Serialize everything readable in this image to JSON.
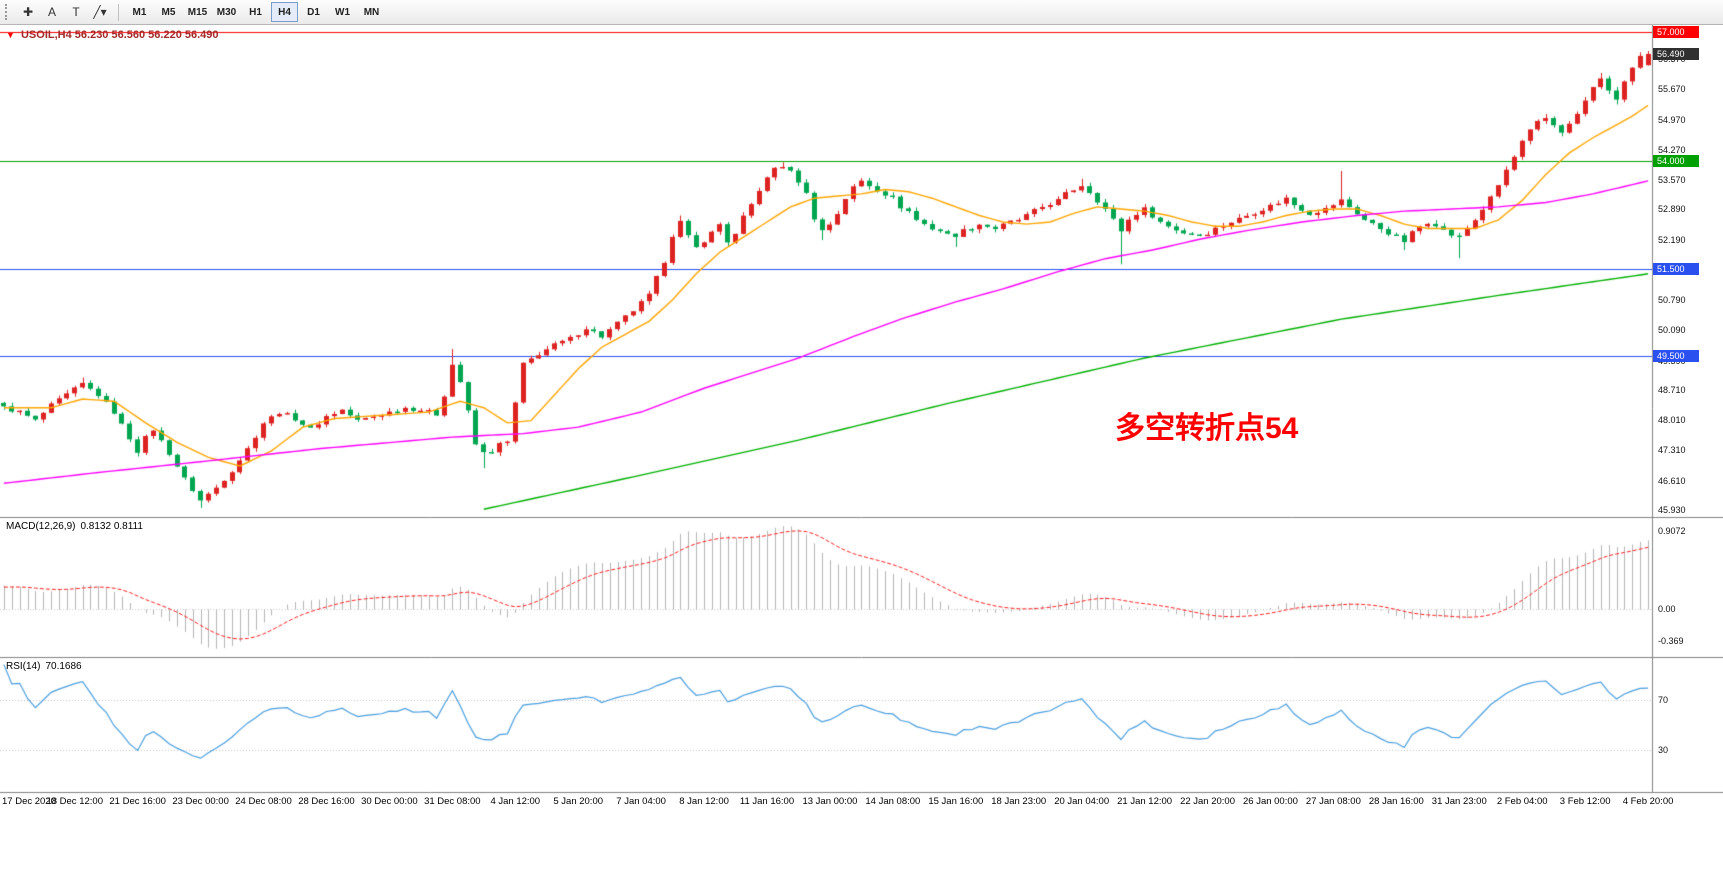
{
  "toolbar": {
    "tools": [
      {
        "name": "crosshair-icon",
        "glyph": "✚"
      },
      {
        "name": "text-label-icon",
        "glyph": "A"
      },
      {
        "name": "text-box-icon",
        "glyph": "T"
      },
      {
        "name": "trendline-icon",
        "glyph": "╱",
        "caret": "▾"
      }
    ],
    "timeframes": [
      "M1",
      "M5",
      "M15",
      "M30",
      "H1",
      "H4",
      "D1",
      "W1",
      "MN"
    ],
    "active_timeframe": "H4"
  },
  "info": {
    "marker": "▼",
    "symbol_period": "USOIL,H4",
    "ohlc": "56.230 56.560 56.220 56.490"
  },
  "annotation": {
    "text": "多空转折点54",
    "color": "#ff0000"
  },
  "indicators": {
    "macd": {
      "label": "MACD(12,26,9)",
      "values": "0.8132 0.8111",
      "scale": [
        {
          "text": "0.9072",
          "v": 0.9072
        },
        {
          "text": "0.00",
          "v": 0
        },
        {
          "text": "-0.369",
          "v": -0.369
        }
      ]
    },
    "rsi": {
      "label": "RSI(14)",
      "values": "70.1686",
      "scale": [
        {
          "text": "70",
          "v": 70
        },
        {
          "text": "30",
          "v": 30
        }
      ]
    }
  },
  "chart_data": {
    "type": "candlestick",
    "symbol": "USOIL",
    "timeframe": "H4",
    "bar_count": 210,
    "current_ohlc": {
      "open": 56.23,
      "high": 56.56,
      "low": 56.22,
      "close": 56.49
    },
    "price_range": [
      45.77,
      57.16
    ],
    "up_color": "#dd2222",
    "down_color": "#00a550",
    "y_ticks": [
      "45.930",
      "46.610",
      "47.310",
      "48.010",
      "48.710",
      "49.390",
      "50.090",
      "50.790",
      "51.490",
      "52.190",
      "52.890",
      "53.570",
      "54.270",
      "54.970",
      "55.670",
      "56.370"
    ],
    "hlines": [
      {
        "price": 57.0,
        "color": "#ff0000",
        "badge": "57.000"
      },
      {
        "price": 54.0,
        "color": "#00a000",
        "badge": "54.000"
      },
      {
        "price": 51.5,
        "color": "#2b50f0",
        "badge": "51.500"
      },
      {
        "price": 49.5,
        "color": "#2b50f0",
        "badge": "49.500"
      }
    ],
    "current_price_badge": {
      "text": "56.490",
      "color": "#303030"
    },
    "price_anchors": [
      [
        0,
        48.3
      ],
      [
        2,
        48.2
      ],
      [
        4,
        48.0
      ],
      [
        6,
        48.35
      ],
      [
        8,
        48.6
      ],
      [
        10,
        48.85
      ],
      [
        12,
        48.6
      ],
      [
        14,
        48.2
      ],
      [
        16,
        47.6
      ],
      [
        17,
        47.3
      ],
      [
        18,
        47.6
      ],
      [
        19,
        47.8
      ],
      [
        21,
        47.25
      ],
      [
        23,
        46.65
      ],
      [
        25,
        46.15
      ],
      [
        27,
        46.45
      ],
      [
        29,
        46.85
      ],
      [
        31,
        47.35
      ],
      [
        33,
        47.95
      ],
      [
        35,
        48.2
      ],
      [
        37,
        48.05
      ],
      [
        39,
        47.8
      ],
      [
        41,
        48.1
      ],
      [
        43,
        48.25
      ],
      [
        45,
        48.0
      ],
      [
        47,
        48.1
      ],
      [
        49,
        48.2
      ],
      [
        51,
        48.3
      ],
      [
        53,
        48.25
      ],
      [
        55,
        48.15
      ],
      [
        56,
        48.6
      ],
      [
        57,
        49.3
      ],
      [
        58,
        48.9
      ],
      [
        59,
        48.2
      ],
      [
        60,
        47.45
      ],
      [
        61,
        47.25
      ],
      [
        62,
        47.3
      ],
      [
        63,
        47.45
      ],
      [
        64,
        47.5
      ],
      [
        65,
        48.4
      ],
      [
        66,
        49.3
      ],
      [
        68,
        49.55
      ],
      [
        70,
        49.75
      ],
      [
        72,
        49.9
      ],
      [
        74,
        50.15
      ],
      [
        76,
        49.95
      ],
      [
        78,
        50.25
      ],
      [
        80,
        50.55
      ],
      [
        82,
        50.9
      ],
      [
        84,
        51.7
      ],
      [
        85,
        52.3
      ],
      [
        86,
        52.6
      ],
      [
        87,
        52.25
      ],
      [
        88,
        52.0
      ],
      [
        90,
        52.35
      ],
      [
        91,
        52.55
      ],
      [
        92,
        52.15
      ],
      [
        93,
        52.3
      ],
      [
        94,
        52.7
      ],
      [
        95,
        53.0
      ],
      [
        96,
        53.35
      ],
      [
        97,
        53.6
      ],
      [
        98,
        53.85
      ],
      [
        99,
        53.9
      ],
      [
        100,
        53.75
      ],
      [
        101,
        53.55
      ],
      [
        102,
        53.25
      ],
      [
        103,
        52.7
      ],
      [
        104,
        52.4
      ],
      [
        105,
        52.55
      ],
      [
        106,
        52.8
      ],
      [
        107,
        53.15
      ],
      [
        108,
        53.4
      ],
      [
        109,
        53.55
      ],
      [
        110,
        53.45
      ],
      [
        111,
        53.35
      ],
      [
        112,
        53.25
      ],
      [
        113,
        53.15
      ],
      [
        114,
        52.95
      ],
      [
        115,
        52.85
      ],
      [
        116,
        52.65
      ],
      [
        117,
        52.55
      ],
      [
        118,
        52.45
      ],
      [
        119,
        52.4
      ],
      [
        120,
        52.3
      ],
      [
        121,
        52.3
      ],
      [
        122,
        52.4
      ],
      [
        124,
        52.55
      ],
      [
        126,
        52.45
      ],
      [
        128,
        52.6
      ],
      [
        129,
        52.65
      ],
      [
        130,
        52.75
      ],
      [
        131,
        52.85
      ],
      [
        132,
        52.95
      ],
      [
        134,
        53.1
      ],
      [
        135,
        53.25
      ],
      [
        136,
        53.35
      ],
      [
        137,
        53.45
      ],
      [
        138,
        53.3
      ],
      [
        139,
        53.1
      ],
      [
        140,
        52.9
      ],
      [
        141,
        52.65
      ],
      [
        142,
        52.4
      ],
      [
        143,
        52.65
      ],
      [
        144,
        52.8
      ],
      [
        145,
        52.9
      ],
      [
        146,
        52.75
      ],
      [
        147,
        52.6
      ],
      [
        148,
        52.5
      ],
      [
        150,
        52.35
      ],
      [
        152,
        52.3
      ],
      [
        153,
        52.35
      ],
      [
        154,
        52.45
      ],
      [
        156,
        52.6
      ],
      [
        158,
        52.75
      ],
      [
        160,
        52.9
      ],
      [
        162,
        53.05
      ],
      [
        163,
        53.15
      ],
      [
        164,
        53.0
      ],
      [
        165,
        52.9
      ],
      [
        166,
        52.8
      ],
      [
        168,
        52.9
      ],
      [
        169,
        53.0
      ],
      [
        170,
        53.1
      ],
      [
        171,
        52.95
      ],
      [
        172,
        52.8
      ],
      [
        173,
        52.65
      ],
      [
        174,
        52.55
      ],
      [
        175,
        52.45
      ],
      [
        176,
        52.35
      ],
      [
        177,
        52.25
      ],
      [
        178,
        52.15
      ],
      [
        179,
        52.35
      ],
      [
        180,
        52.5
      ],
      [
        181,
        52.6
      ],
      [
        182,
        52.55
      ],
      [
        183,
        52.4
      ],
      [
        184,
        52.3
      ],
      [
        185,
        52.25
      ],
      [
        186,
        52.45
      ],
      [
        187,
        52.65
      ],
      [
        188,
        52.9
      ],
      [
        189,
        53.15
      ],
      [
        190,
        53.45
      ],
      [
        191,
        53.8
      ],
      [
        192,
        54.1
      ],
      [
        193,
        54.45
      ],
      [
        194,
        54.7
      ],
      [
        195,
        54.9
      ],
      [
        196,
        55.0
      ],
      [
        197,
        54.85
      ],
      [
        198,
        54.7
      ],
      [
        199,
        54.85
      ],
      [
        200,
        55.1
      ],
      [
        201,
        55.4
      ],
      [
        202,
        55.7
      ],
      [
        203,
        55.95
      ],
      [
        204,
        55.6
      ],
      [
        205,
        55.45
      ],
      [
        206,
        55.85
      ],
      [
        207,
        56.15
      ],
      [
        208,
        56.4
      ],
      [
        209,
        56.49
      ]
    ],
    "wick_overrides": [
      {
        "bar": 10,
        "high": 49.0
      },
      {
        "bar": 25,
        "low": 45.98
      },
      {
        "bar": 57,
        "high": 49.66
      },
      {
        "bar": 61,
        "low": 46.9
      },
      {
        "bar": 86,
        "high": 52.75
      },
      {
        "bar": 99,
        "high": 53.98
      },
      {
        "bar": 104,
        "low": 52.18
      },
      {
        "bar": 110,
        "high": 53.62
      },
      {
        "bar": 121,
        "low": 52.02
      },
      {
        "bar": 137,
        "high": 53.6
      },
      {
        "bar": 142,
        "low": 51.62
      },
      {
        "bar": 170,
        "high": 53.78
      },
      {
        "bar": 178,
        "low": 51.95
      },
      {
        "bar": 185,
        "low": 51.76
      },
      {
        "bar": 196,
        "high": 55.1
      },
      {
        "bar": 203,
        "high": 56.05
      },
      {
        "bar": 205,
        "low": 55.32
      }
    ],
    "moving_averages": [
      {
        "name": "ma-fast",
        "color": "#ffa500",
        "anchors": [
          [
            0,
            48.3
          ],
          [
            6,
            48.3
          ],
          [
            10,
            48.5
          ],
          [
            14,
            48.45
          ],
          [
            18,
            47.95
          ],
          [
            22,
            47.5
          ],
          [
            26,
            47.15
          ],
          [
            30,
            46.95
          ],
          [
            34,
            47.3
          ],
          [
            38,
            47.85
          ],
          [
            42,
            48.05
          ],
          [
            46,
            48.1
          ],
          [
            50,
            48.15
          ],
          [
            54,
            48.2
          ],
          [
            58,
            48.45
          ],
          [
            61,
            48.3
          ],
          [
            64,
            47.95
          ],
          [
            67,
            48.0
          ],
          [
            70,
            48.6
          ],
          [
            73,
            49.2
          ],
          [
            76,
            49.7
          ],
          [
            79,
            50.0
          ],
          [
            82,
            50.3
          ],
          [
            85,
            50.8
          ],
          [
            88,
            51.4
          ],
          [
            91,
            51.9
          ],
          [
            94,
            52.25
          ],
          [
            97,
            52.6
          ],
          [
            100,
            52.95
          ],
          [
            103,
            53.15
          ],
          [
            106,
            53.2
          ],
          [
            109,
            53.25
          ],
          [
            112,
            53.35
          ],
          [
            115,
            53.3
          ],
          [
            118,
            53.15
          ],
          [
            121,
            52.95
          ],
          [
            124,
            52.75
          ],
          [
            127,
            52.6
          ],
          [
            130,
            52.55
          ],
          [
            133,
            52.6
          ],
          [
            136,
            52.8
          ],
          [
            139,
            52.95
          ],
          [
            142,
            52.9
          ],
          [
            145,
            52.85
          ],
          [
            148,
            52.75
          ],
          [
            151,
            52.6
          ],
          [
            154,
            52.5
          ],
          [
            157,
            52.5
          ],
          [
            160,
            52.6
          ],
          [
            163,
            52.75
          ],
          [
            166,
            52.85
          ],
          [
            169,
            52.9
          ],
          [
            172,
            52.9
          ],
          [
            175,
            52.75
          ],
          [
            178,
            52.55
          ],
          [
            181,
            52.45
          ],
          [
            184,
            52.45
          ],
          [
            187,
            52.45
          ],
          [
            190,
            52.65
          ],
          [
            193,
            53.1
          ],
          [
            196,
            53.7
          ],
          [
            199,
            54.2
          ],
          [
            202,
            54.55
          ],
          [
            205,
            54.85
          ],
          [
            207,
            55.05
          ],
          [
            209,
            55.3
          ]
        ]
      },
      {
        "name": "ma-mid",
        "color": "#ff00ff",
        "anchors": [
          [
            0,
            46.55
          ],
          [
            12,
            46.8
          ],
          [
            25,
            47.05
          ],
          [
            40,
            47.35
          ],
          [
            57,
            47.62
          ],
          [
            66,
            47.7
          ],
          [
            73,
            47.85
          ],
          [
            81,
            48.2
          ],
          [
            89,
            48.75
          ],
          [
            95,
            49.1
          ],
          [
            101,
            49.45
          ],
          [
            108,
            49.95
          ],
          [
            114,
            50.35
          ],
          [
            121,
            50.75
          ],
          [
            127,
            51.05
          ],
          [
            134,
            51.45
          ],
          [
            140,
            51.75
          ],
          [
            146,
            51.95
          ],
          [
            152,
            52.2
          ],
          [
            158,
            52.4
          ],
          [
            165,
            52.6
          ],
          [
            172,
            52.75
          ],
          [
            178,
            52.85
          ],
          [
            184,
            52.9
          ],
          [
            190,
            52.95
          ],
          [
            196,
            53.05
          ],
          [
            202,
            53.25
          ],
          [
            209,
            53.55
          ]
        ]
      },
      {
        "name": "ma-slow",
        "color": "#00b000",
        "anchors": [
          [
            61,
            45.95
          ],
          [
            80,
            46.7
          ],
          [
            101,
            47.55
          ],
          [
            120,
            48.4
          ],
          [
            145,
            49.45
          ],
          [
            170,
            50.35
          ],
          [
            190,
            50.9
          ],
          [
            209,
            51.4
          ]
        ]
      }
    ],
    "x_labels": [
      "17 Dec 2020",
      "18 Dec 12:00",
      "21 Dec 16:00",
      "23 Dec 00:00",
      "24 Dec 08:00",
      "28 Dec 16:00",
      "30 Dec 00:00",
      "31 Dec 08:00",
      "4 Jan 12:00",
      "5 Jan 20:00",
      "7 Jan 04:00",
      "8 Jan 12:00",
      "11 Jan 16:00",
      "13 Jan 00:00",
      "14 Jan 08:00",
      "15 Jan 16:00",
      "18 Jan 23:00",
      "20 Jan 04:00",
      "21 Jan 12:00",
      "22 Jan 20:00",
      "26 Jan 00:00",
      "27 Jan 08:00",
      "28 Jan 16:00",
      "31 Jan 23:00",
      "2 Feb 04:00",
      "3 Feb 12:00",
      "4 Feb 20:00"
    ],
    "label_start": 1,
    "label_step": 8,
    "macd": {
      "fast": 12,
      "slow": 26,
      "signal": 9,
      "hist_color": "#b4b4b4",
      "signal_color": "#ff2020"
    },
    "rsi": {
      "period": 14,
      "color": "#4a9ede",
      "levels": [
        70,
        30
      ]
    }
  }
}
